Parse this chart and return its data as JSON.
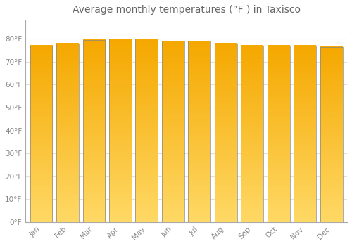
{
  "title": "Average monthly temperatures (°F ) in Taxisco",
  "months": [
    "Jan",
    "Feb",
    "Mar",
    "Apr",
    "May",
    "Jun",
    "Jul",
    "Aug",
    "Sep",
    "Oct",
    "Nov",
    "Dec"
  ],
  "values": [
    77.0,
    78.0,
    79.5,
    80.0,
    80.0,
    79.0,
    79.0,
    78.0,
    77.0,
    77.0,
    77.0,
    76.5
  ],
  "bar_color_bottom": "#F5A800",
  "bar_color_top": "#FFD966",
  "bar_edge_color": "#888888",
  "background_color": "#FFFFFF",
  "grid_color": "#E0E0E0",
  "text_color": "#888888",
  "ylim": [
    0,
    88
  ],
  "yticks": [
    0,
    10,
    20,
    30,
    40,
    50,
    60,
    70,
    80
  ],
  "ytick_labels": [
    "0°F",
    "10°F",
    "20°F",
    "30°F",
    "40°F",
    "50°F",
    "60°F",
    "70°F",
    "80°F"
  ],
  "title_fontsize": 10,
  "tick_fontsize": 7.5,
  "title_color": "#666666"
}
